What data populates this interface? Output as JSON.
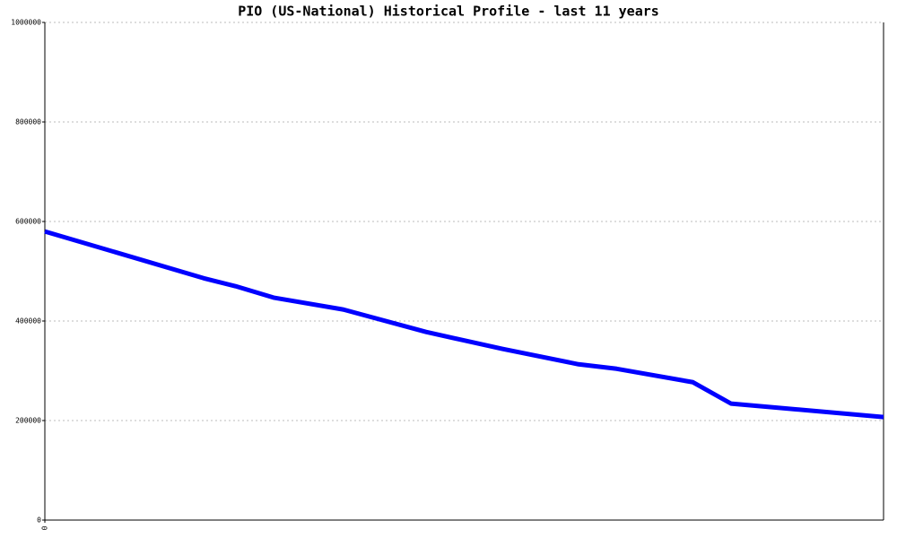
{
  "chart_data": {
    "type": "line",
    "title": "PIO (US-National) Historical Profile - last 11 years",
    "x": [
      0,
      25,
      30,
      36,
      47,
      60,
      72,
      84,
      90,
      102,
      108,
      132
    ],
    "series": [
      {
        "name": "PIO",
        "color": "#0000ff",
        "values": [
          580000,
          486000,
          470000,
          447000,
          423000,
          378000,
          344000,
          313000,
          304000,
          277000,
          234000,
          207000
        ]
      }
    ],
    "xlim": [
      0,
      132
    ],
    "xticks": [
      0
    ],
    "ylim": [
      0,
      1000000
    ],
    "yticks": [
      0,
      200000,
      400000,
      600000,
      800000,
      1000000
    ],
    "grid": true
  }
}
